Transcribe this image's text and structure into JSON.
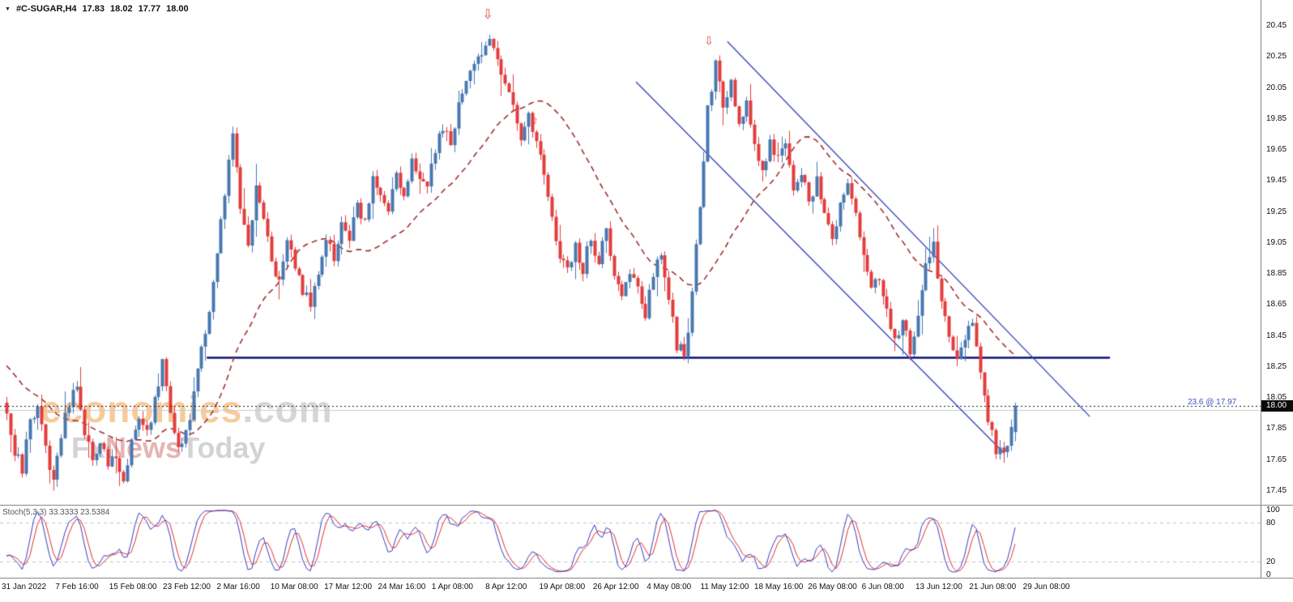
{
  "quote_bar": {
    "expander_icon": "▼",
    "symbol": "#C-SUGAR,H4",
    "open": "17.83",
    "high": "18.02",
    "low": "17.77",
    "close": "18.00"
  },
  "watermark": {
    "brand": "economies",
    "brand_suffix": ".com",
    "tagline_fx": "Fx",
    "tagline_news": "News",
    "tagline_today": "Today"
  },
  "indicator": {
    "label": "Stoch(5,3,3) 33.3333 23.5384",
    "name": "Stochastic Oscillator",
    "params": [
      5,
      3,
      3
    ],
    "current_values": [
      33.3333,
      23.5384
    ],
    "axis_labels": [
      "100",
      "80",
      "20",
      "0"
    ],
    "levels": [
      80,
      20
    ],
    "range": [
      0,
      100
    ]
  },
  "chart_data": {
    "type": "candlestick",
    "symbol": "#C-SUGAR",
    "timeframe": "H4",
    "last_quote": {
      "open": 17.83,
      "high": 18.02,
      "low": 17.77,
      "close": 18.0
    },
    "bars": 260,
    "seed": 77031,
    "y_range": [
      17.3661,
      20.6178
    ],
    "y_tick_labels": [
      "20.45",
      "20.25",
      "20.05",
      "19.85",
      "19.65",
      "19.45",
      "19.25",
      "19.05",
      "18.85",
      "18.65",
      "18.45",
      "18.25",
      "18.05",
      "17.85",
      "17.65",
      "17.45"
    ],
    "x_tick_labels": [
      "31 Jan 2022",
      "7 Feb 16:00",
      "15 Feb 08:00",
      "23 Feb 12:00",
      "2 Mar 16:00",
      "10 Mar 08:00",
      "17 Mar 12:00",
      "24 Mar 16:00",
      "1 Apr 08:00",
      "8 Apr 12:00",
      "19 Apr 08:00",
      "26 Apr 12:00",
      "4 May 08:00",
      "11 May 12:00",
      "18 May 16:00",
      "26 May 08:00",
      "6 Jun 08:00",
      "13 Jun 12:00",
      "21 Jun 08:00",
      "29 Jun 08:00"
    ],
    "price_path": [
      [
        0,
        17.98
      ],
      [
        2,
        17.72
      ],
      [
        4,
        17.6
      ],
      [
        6,
        17.88
      ],
      [
        8,
        17.98
      ],
      [
        10,
        17.7
      ],
      [
        12,
        17.56
      ],
      [
        14,
        17.8
      ],
      [
        16,
        18.02
      ],
      [
        18,
        18.1
      ],
      [
        20,
        17.85
      ],
      [
        22,
        17.65
      ],
      [
        24,
        17.78
      ],
      [
        26,
        17.6
      ],
      [
        28,
        17.68
      ],
      [
        30,
        17.55
      ],
      [
        32,
        17.75
      ],
      [
        34,
        17.9
      ],
      [
        36,
        17.8
      ],
      [
        38,
        18.05
      ],
      [
        40,
        18.28
      ],
      [
        42,
        17.95
      ],
      [
        44,
        17.7
      ],
      [
        46,
        17.85
      ],
      [
        48,
        18.05
      ],
      [
        50,
        18.35
      ],
      [
        52,
        18.62
      ],
      [
        54,
        19.0
      ],
      [
        56,
        19.35
      ],
      [
        58,
        19.78
      ],
      [
        60,
        19.3
      ],
      [
        62,
        19.05
      ],
      [
        64,
        19.4
      ],
      [
        66,
        19.25
      ],
      [
        68,
        18.9
      ],
      [
        70,
        18.78
      ],
      [
        72,
        19.05
      ],
      [
        74,
        18.88
      ],
      [
        76,
        18.72
      ],
      [
        78,
        18.68
      ],
      [
        80,
        18.85
      ],
      [
        82,
        19.05
      ],
      [
        84,
        18.95
      ],
      [
        86,
        19.2
      ],
      [
        88,
        19.1
      ],
      [
        90,
        19.3
      ],
      [
        92,
        19.2
      ],
      [
        94,
        19.45
      ],
      [
        96,
        19.38
      ],
      [
        98,
        19.25
      ],
      [
        100,
        19.48
      ],
      [
        102,
        19.35
      ],
      [
        104,
        19.6
      ],
      [
        106,
        19.5
      ],
      [
        108,
        19.42
      ],
      [
        110,
        19.65
      ],
      [
        112,
        19.8
      ],
      [
        114,
        19.7
      ],
      [
        116,
        19.95
      ],
      [
        118,
        20.1
      ],
      [
        120,
        20.2
      ],
      [
        122,
        20.3
      ],
      [
        124,
        20.38
      ],
      [
        126,
        20.22
      ],
      [
        128,
        20.1
      ],
      [
        130,
        19.95
      ],
      [
        132,
        19.72
      ],
      [
        134,
        19.85
      ],
      [
        136,
        19.75
      ],
      [
        138,
        19.45
      ],
      [
        140,
        19.2
      ],
      [
        142,
        18.95
      ],
      [
        144,
        18.85
      ],
      [
        146,
        19.05
      ],
      [
        148,
        18.88
      ],
      [
        150,
        19.1
      ],
      [
        152,
        18.92
      ],
      [
        154,
        19.15
      ],
      [
        156,
        18.85
      ],
      [
        158,
        18.7
      ],
      [
        160,
        18.88
      ],
      [
        162,
        18.75
      ],
      [
        164,
        18.6
      ],
      [
        166,
        18.85
      ],
      [
        168,
        18.95
      ],
      [
        170,
        18.7
      ],
      [
        172,
        18.4
      ],
      [
        174,
        18.33
      ],
      [
        176,
        18.7
      ],
      [
        178,
        19.3
      ],
      [
        180,
        19.9
      ],
      [
        182,
        20.22
      ],
      [
        184,
        19.95
      ],
      [
        186,
        20.12
      ],
      [
        188,
        19.8
      ],
      [
        190,
        20.0
      ],
      [
        192,
        19.7
      ],
      [
        194,
        19.52
      ],
      [
        196,
        19.72
      ],
      [
        198,
        19.58
      ],
      [
        200,
        19.68
      ],
      [
        202,
        19.42
      ],
      [
        204,
        19.52
      ],
      [
        206,
        19.3
      ],
      [
        208,
        19.45
      ],
      [
        210,
        19.22
      ],
      [
        212,
        19.05
      ],
      [
        214,
        19.3
      ],
      [
        216,
        19.42
      ],
      [
        218,
        19.25
      ],
      [
        220,
        19.0
      ],
      [
        222,
        18.72
      ],
      [
        224,
        18.85
      ],
      [
        226,
        18.6
      ],
      [
        228,
        18.42
      ],
      [
        230,
        18.55
      ],
      [
        232,
        18.35
      ],
      [
        234,
        18.6
      ],
      [
        236,
        18.95
      ],
      [
        238,
        19.02
      ],
      [
        240,
        18.7
      ],
      [
        242,
        18.42
      ],
      [
        244,
        18.3
      ],
      [
        246,
        18.42
      ],
      [
        248,
        18.55
      ],
      [
        250,
        18.22
      ],
      [
        252,
        17.9
      ],
      [
        254,
        17.7
      ],
      [
        256,
        17.74
      ],
      [
        258,
        17.83
      ],
      [
        259,
        18.0
      ]
    ],
    "ma": {
      "period": 28,
      "prehistory_bars": 40,
      "prehistory_from": 18.85,
      "style": "dashed"
    },
    "overlays": {
      "support_line": {
        "price": 18.31,
        "x_from_frac": 0.164,
        "x_to_frac": 0.8805
      },
      "channel_lines": [
        {
          "x1_frac": 0.5045,
          "price1": 20.09,
          "x2_frac": 0.797,
          "price2": 17.69
        },
        {
          "x1_frac": 0.577,
          "price1": 20.35,
          "x2_frac": 0.8645,
          "price2": 17.93
        }
      ],
      "current_price_line": {
        "price": 18.0,
        "style": "dotted"
      },
      "fib_line": {
        "price": 17.97,
        "label": "23.6 @ 17.97"
      },
      "arrows": [
        {
          "x_frac": 0.3869,
          "price": 20.5,
          "glyph": "⇩",
          "size": 16
        },
        {
          "x_frac": 0.5623,
          "price": 20.33,
          "glyph": "⇩",
          "size": 14
        },
        {
          "x_frac": 0.4242,
          "price": 19.82,
          "glyph": "⇧",
          "size": 11
        }
      ]
    },
    "colors": {
      "up": "#4878b0",
      "down": "#e23d3d",
      "ma": "#a03030",
      "channel": "#3848b8",
      "support": "#0a1078",
      "price_line": "#1a1a1a",
      "fib_line": "#c2cfc8",
      "fib_text": "#3f51c1",
      "stoch_main": "#3a3ac0",
      "stoch_signal": "#e03030",
      "stoch_levels": "#bcc4ce",
      "axis_line": "#868686",
      "badge_bg": "#0b0b0b"
    }
  }
}
